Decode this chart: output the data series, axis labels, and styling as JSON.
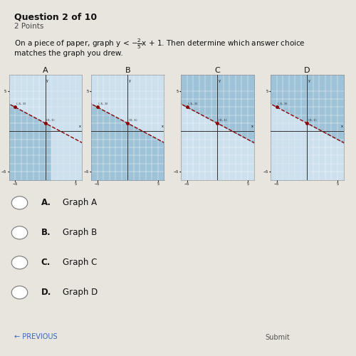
{
  "title": "Question 2 of 10",
  "subtitle": "2 Points",
  "graph_labels": [
    "A",
    "B",
    "C",
    "D"
  ],
  "line_slope": -0.4,
  "line_intercept": 1,
  "bg_color": "#e8e5df",
  "graph_bg_light": "#cde0ee",
  "graph_bg_dark": "#a8c4d8",
  "line_color": "#8B0000",
  "point_color": "#8B0000",
  "shades": [
    "lower_left",
    "lower_both",
    "upper_all",
    "upper_right"
  ],
  "shade_color": "#96bdd4",
  "xlim": [
    -6,
    6
  ],
  "ylim": [
    -6,
    7
  ],
  "choice_letters": [
    "A",
    "B",
    "C",
    "D"
  ],
  "choice_labels": [
    "Graph A",
    "Graph B",
    "Graph C",
    "Graph D"
  ]
}
